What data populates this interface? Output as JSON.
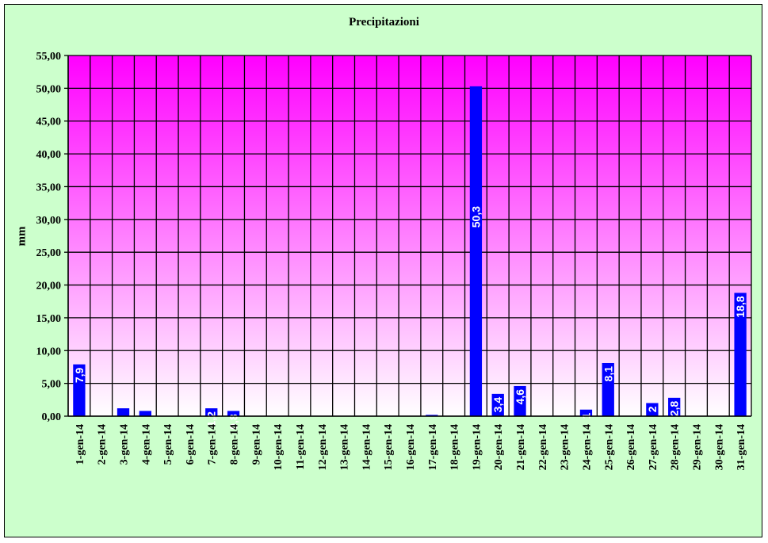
{
  "chart_data": {
    "type": "bar",
    "title": "Precipitazioni",
    "xlabel": "",
    "ylabel": "mm",
    "ylim": [
      0,
      55
    ],
    "ytick_step": 5,
    "ytick_labels": [
      "0,00",
      "5,00",
      "10,00",
      "15,00",
      "20,00",
      "25,00",
      "30,00",
      "35,00",
      "40,00",
      "45,00",
      "50,00",
      "55,00"
    ],
    "grid": true,
    "legend": "none",
    "categories": [
      "1-gen-14",
      "2-gen-14",
      "3-gen-14",
      "4-gen-14",
      "5-gen-14",
      "6-gen-14",
      "7-gen-14",
      "8-gen-14",
      "9-gen-14",
      "10-gen-14",
      "11-gen-14",
      "12-gen-14",
      "13-gen-14",
      "14-gen-14",
      "15-gen-14",
      "16-gen-14",
      "17-gen-14",
      "18-gen-14",
      "19-gen-14",
      "20-gen-14",
      "21-gen-14",
      "22-gen-14",
      "23-gen-14",
      "24-gen-14",
      "25-gen-14",
      "26-gen-14",
      "27-gen-14",
      "28-gen-14",
      "29-gen-14",
      "30-gen-14",
      "31-gen-14"
    ],
    "values": [
      7.9,
      0,
      1.2,
      0.8,
      0,
      0,
      1.2,
      0.8,
      0,
      0,
      0,
      0,
      0,
      0,
      0,
      0,
      0.2,
      0,
      50.3,
      3.4,
      4.6,
      0,
      0,
      1,
      8.1,
      0,
      2,
      2.8,
      0,
      0,
      18.8
    ],
    "data_labels": [
      "7,9",
      "",
      "",
      "",
      "",
      "",
      "1,2",
      "0,8",
      "",
      "",
      "",
      "",
      "",
      "",
      "",
      "",
      "",
      "",
      "50,3",
      "3,4",
      "4,6",
      "",
      "",
      "1",
      "8,1",
      "",
      "2",
      "2,8",
      "",
      "",
      "18,8"
    ],
    "colors": {
      "bar": "#0000ff",
      "plot_top": "#ff00ff",
      "plot_bottom": "#ffffff",
      "background": "#ccffcc",
      "gridline": "#000000"
    }
  }
}
